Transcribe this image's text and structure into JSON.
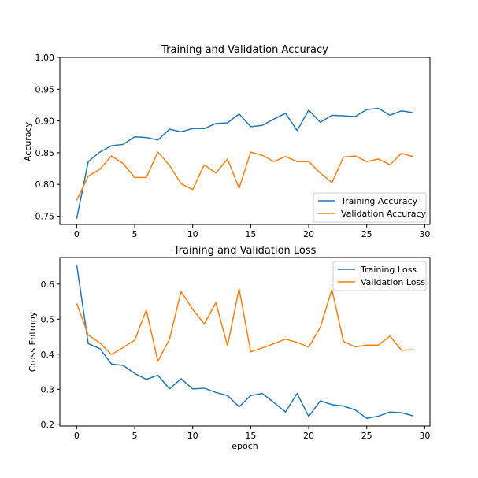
{
  "chart_data": [
    {
      "type": "line",
      "title": "Training and Validation Accuracy",
      "xlabel": "",
      "ylabel": "Accuracy",
      "xlim": [
        -1.45,
        30.45
      ],
      "ylim": [
        0.737,
        1.0
      ],
      "xticks": [
        0,
        5,
        10,
        15,
        20,
        25,
        30
      ],
      "xtick_labels": [
        "0",
        "5",
        "10",
        "15",
        "20",
        "25",
        "30"
      ],
      "yticks": [
        0.75,
        0.8,
        0.85,
        0.9,
        0.95,
        1.0
      ],
      "ytick_labels": [
        "0.75",
        "0.80",
        "0.85",
        "0.90",
        "0.95",
        "1.00"
      ],
      "legend_position": "lower-right",
      "x": [
        0,
        1,
        2,
        3,
        4,
        5,
        6,
        7,
        8,
        9,
        10,
        11,
        12,
        13,
        14,
        15,
        16,
        17,
        18,
        19,
        20,
        21,
        22,
        23,
        24,
        25,
        26,
        27,
        28,
        29
      ],
      "series": [
        {
          "name": "Training Accuracy",
          "color": "#1f77b4",
          "values": [
            0.746,
            0.836,
            0.851,
            0.861,
            0.863,
            0.875,
            0.874,
            0.87,
            0.887,
            0.883,
            0.888,
            0.888,
            0.896,
            0.897,
            0.911,
            0.891,
            0.893,
            0.903,
            0.912,
            0.885,
            0.917,
            0.898,
            0.909,
            0.908,
            0.907,
            0.918,
            0.92,
            0.909,
            0.916,
            0.913
          ]
        },
        {
          "name": "Validation Accuracy",
          "color": "#ff7f0e",
          "values": [
            0.775,
            0.813,
            0.824,
            0.845,
            0.833,
            0.811,
            0.811,
            0.851,
            0.83,
            0.801,
            0.792,
            0.831,
            0.818,
            0.84,
            0.794,
            0.851,
            0.846,
            0.836,
            0.844,
            0.836,
            0.836,
            0.818,
            0.803,
            0.843,
            0.845,
            0.836,
            0.84,
            0.831,
            0.849,
            0.844
          ]
        }
      ]
    },
    {
      "type": "line",
      "title": "Training and Validation Loss",
      "xlabel": "epoch",
      "ylabel": "Cross Entropy",
      "xlim": [
        -1.45,
        30.45
      ],
      "ylim": [
        0.195,
        0.676
      ],
      "xticks": [
        0,
        5,
        10,
        15,
        20,
        25,
        30
      ],
      "xtick_labels": [
        "0",
        "5",
        "10",
        "15",
        "20",
        "25",
        "30"
      ],
      "yticks": [
        0.2,
        0.3,
        0.4,
        0.5,
        0.6
      ],
      "ytick_labels": [
        "0.2",
        "0.3",
        "0.4",
        "0.5",
        "0.6"
      ],
      "legend_position": "upper-right",
      "x": [
        0,
        1,
        2,
        3,
        4,
        5,
        6,
        7,
        8,
        9,
        10,
        11,
        12,
        13,
        14,
        15,
        16,
        17,
        18,
        19,
        20,
        21,
        22,
        23,
        24,
        25,
        26,
        27,
        28,
        29
      ],
      "series": [
        {
          "name": "Training Loss",
          "color": "#1f77b4",
          "values": [
            0.656,
            0.43,
            0.416,
            0.372,
            0.368,
            0.345,
            0.328,
            0.34,
            0.301,
            0.33,
            0.301,
            0.303,
            0.291,
            0.282,
            0.25,
            0.282,
            0.288,
            0.262,
            0.235,
            0.288,
            0.222,
            0.267,
            0.256,
            0.252,
            0.241,
            0.217,
            0.223,
            0.235,
            0.233,
            0.224
          ]
        },
        {
          "name": "Validation Loss",
          "color": "#ff7f0e",
          "values": [
            0.545,
            0.455,
            0.432,
            0.399,
            0.419,
            0.44,
            0.526,
            0.38,
            0.443,
            0.579,
            0.528,
            0.486,
            0.547,
            0.424,
            0.587,
            0.407,
            0.418,
            0.43,
            0.443,
            0.434,
            0.42,
            0.477,
            0.585,
            0.436,
            0.421,
            0.426,
            0.426,
            0.452,
            0.411,
            0.413
          ]
        }
      ]
    }
  ]
}
